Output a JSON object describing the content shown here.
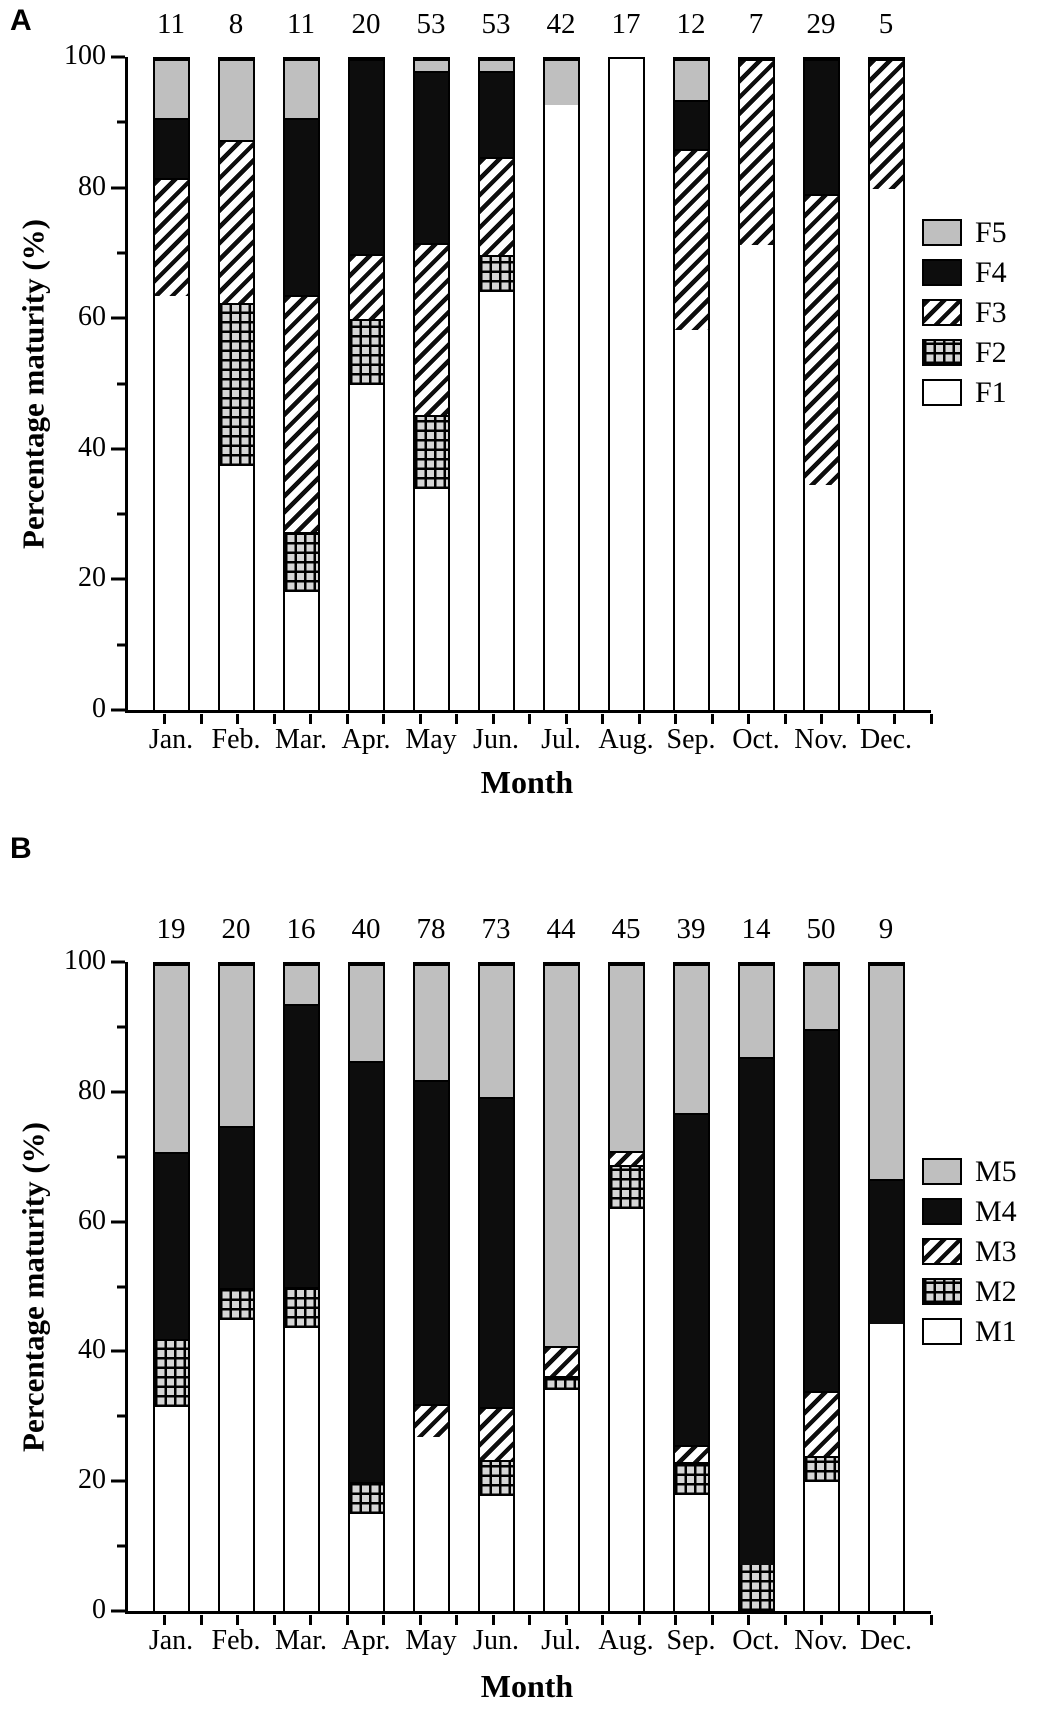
{
  "figure": {
    "panel_a_letter": "A",
    "panel_b_letter": "B"
  },
  "colors": {
    "black_fill": "#0d0d0d",
    "gray_fill": "#bfbfbf",
    "grid_square_fill": "#d6d6d6",
    "background": "#ffffff"
  },
  "chart_data": [
    {
      "panel": "A",
      "type": "bar",
      "subtype": "stacked-percentage",
      "ylabel": "Percentage maturity (%)",
      "xlabel": "Month",
      "ylim": [
        0,
        100
      ],
      "yticks_major": [
        0,
        20,
        40,
        60,
        80,
        100
      ],
      "yticks_minor": [
        10,
        30,
        50,
        70,
        90
      ],
      "grid": "off",
      "legend_position": "right",
      "legend_order_top_to_bottom": [
        "F5",
        "F4",
        "F3",
        "F2",
        "F1"
      ],
      "categories": [
        "Jan.",
        "Feb.",
        "Mar.",
        "Apr.",
        "May",
        "Jun.",
        "Jul.",
        "Aug.",
        "Sep.",
        "Oct.",
        "Nov.",
        "Dec."
      ],
      "sample_sizes": [
        11,
        8,
        11,
        20,
        53,
        53,
        42,
        17,
        12,
        7,
        29,
        5
      ],
      "series": [
        {
          "name": "F1",
          "fill": "white",
          "values": [
            63.6,
            37.5,
            18.2,
            50,
            34.0,
            64.2,
            92.9,
            100,
            58.3,
            71.4,
            34.5,
            80
          ]
        },
        {
          "name": "F2",
          "fill": "grid",
          "values": [
            0,
            25,
            9.1,
            10,
            11.3,
            5.7,
            0,
            0,
            0,
            0,
            0,
            0
          ]
        },
        {
          "name": "F3",
          "fill": "diagonal",
          "values": [
            18.2,
            25,
            36.4,
            10,
            26.4,
            15.1,
            0,
            0,
            27.9,
            28.6,
            44.8,
            20
          ]
        },
        {
          "name": "F4",
          "fill": "black",
          "values": [
            9.1,
            0,
            27.3,
            30,
            26.4,
            13.1,
            0,
            0,
            7.5,
            0,
            20.7,
            0
          ]
        },
        {
          "name": "F5",
          "fill": "gray",
          "values": [
            9.1,
            12.5,
            9.0,
            0,
            1.9,
            1.9,
            7.1,
            0,
            6.3,
            0,
            0,
            0
          ]
        }
      ]
    },
    {
      "panel": "B",
      "type": "bar",
      "subtype": "stacked-percentage",
      "ylabel": "Percentage maturity (%)",
      "xlabel": "Month",
      "ylim": [
        0,
        100
      ],
      "yticks_major": [
        0,
        20,
        40,
        60,
        80,
        100
      ],
      "yticks_minor": [
        10,
        30,
        50,
        70,
        90
      ],
      "grid": "off",
      "legend_position": "right",
      "legend_order_top_to_bottom": [
        "M5",
        "M4",
        "M3",
        "M2",
        "M1"
      ],
      "categories": [
        "Jan.",
        "Feb.",
        "Mar.",
        "Apr.",
        "May",
        "Jun.",
        "Jul.",
        "Aug.",
        "Sep.",
        "Oct.",
        "Nov.",
        "Dec."
      ],
      "sample_sizes": [
        19,
        20,
        16,
        40,
        78,
        73,
        44,
        45,
        39,
        14,
        50,
        9
      ],
      "series": [
        {
          "name": "M1",
          "fill": "white",
          "values": [
            31.6,
            45,
            43.8,
            15,
            26.9,
            17.8,
            34.1,
            62.2,
            17.9,
            0,
            20,
            44.4
          ]
        },
        {
          "name": "M2",
          "fill": "grid",
          "values": [
            10.5,
            5,
            6.3,
            5,
            0,
            5.5,
            2.3,
            6.7,
            5.1,
            7.1,
            4,
            0
          ]
        },
        {
          "name": "M3",
          "fill": "diagonal",
          "values": [
            0,
            0,
            0,
            0,
            5.1,
            8.2,
            4.5,
            2.2,
            2.6,
            0,
            10,
            0
          ]
        },
        {
          "name": "M4",
          "fill": "black",
          "values": [
            28.9,
            25,
            43.7,
            65,
            50.0,
            47.9,
            0,
            0,
            51.3,
            78.6,
            56,
            22.3
          ]
        },
        {
          "name": "M5",
          "fill": "gray",
          "values": [
            29.0,
            25,
            6.2,
            15,
            18.0,
            20.6,
            59.1,
            28.9,
            23.1,
            14.3,
            10,
            33.3
          ]
        }
      ]
    }
  ]
}
